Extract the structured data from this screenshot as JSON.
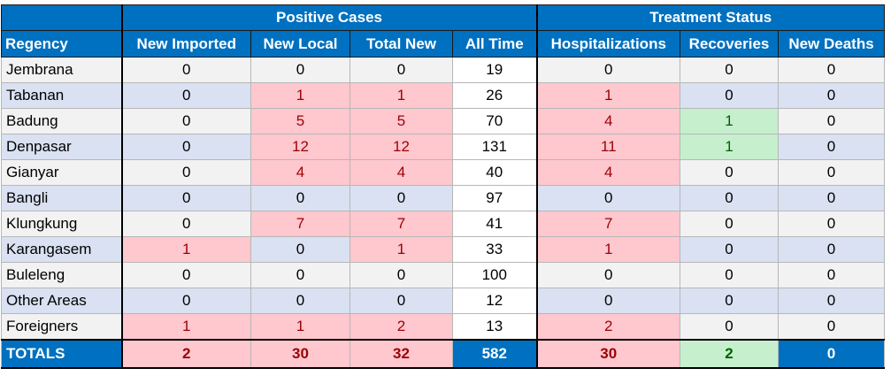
{
  "group_headers": {
    "positive_cases": "Positive Cases",
    "treatment_status": "Treatment Status"
  },
  "columns": [
    "Regency",
    "New Imported",
    "New Local",
    "Total New",
    "All Time",
    "Hospitalizations",
    "Recoveries",
    "New Deaths"
  ],
  "rows": [
    {
      "regency": "Jembrana",
      "values": [
        "0",
        "0",
        "0",
        "19",
        "0",
        "0",
        "0"
      ]
    },
    {
      "regency": "Tabanan",
      "values": [
        "0",
        "1",
        "1",
        "26",
        "1",
        "0",
        "0"
      ]
    },
    {
      "regency": "Badung",
      "values": [
        "0",
        "5",
        "5",
        "70",
        "4",
        "1",
        "0"
      ]
    },
    {
      "regency": "Denpasar",
      "values": [
        "0",
        "12",
        "12",
        "131",
        "11",
        "1",
        "0"
      ]
    },
    {
      "regency": "Gianyar",
      "values": [
        "0",
        "4",
        "4",
        "40",
        "4",
        "0",
        "0"
      ]
    },
    {
      "regency": "Bangli",
      "values": [
        "0",
        "0",
        "0",
        "97",
        "0",
        "0",
        "0"
      ]
    },
    {
      "regency": "Klungkung",
      "values": [
        "0",
        "7",
        "7",
        "41",
        "7",
        "0",
        "0"
      ]
    },
    {
      "regency": "Karangasem",
      "values": [
        "1",
        "0",
        "1",
        "33",
        "1",
        "0",
        "0"
      ]
    },
    {
      "regency": "Buleleng",
      "values": [
        "0",
        "0",
        "0",
        "100",
        "0",
        "0",
        "0"
      ]
    },
    {
      "regency": "Other Areas",
      "values": [
        "0",
        "0",
        "0",
        "12",
        "0",
        "0",
        "0"
      ]
    },
    {
      "regency": "Foreigners",
      "values": [
        "1",
        "1",
        "2",
        "13",
        "2",
        "0",
        "0"
      ]
    }
  ],
  "totals": {
    "label": "TOTALS",
    "values": [
      "2",
      "30",
      "32",
      "582",
      "30",
      "2",
      "0"
    ]
  },
  "colors": {
    "header_blue": "#0070c0",
    "highlight_pink": "#ffc7ce",
    "highlight_pink_text": "#9c0006",
    "highlight_green": "#c6efce",
    "highlight_green_text": "#006100",
    "row_blue": "#d9e1f2",
    "row_light": "#f2f2f2"
  }
}
